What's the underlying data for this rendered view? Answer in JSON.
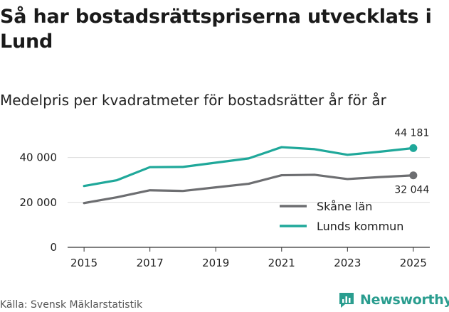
{
  "title": "Så har bostadsrättspriserna utvecklats i Lund",
  "subtitle": "Medelpris per kvadratmeter för bostadsrätter år för år",
  "source": "Källa: Svensk Mäklarstatistik",
  "brand": {
    "name": "Newsworthy",
    "icon": "newsworthy-logo-icon",
    "color": "#2a9d8f"
  },
  "chart_data": {
    "type": "line",
    "x": [
      2015,
      2016,
      2017,
      2018,
      2019,
      2020,
      2021,
      2022,
      2023,
      2024,
      2025
    ],
    "xticks": [
      2015,
      2017,
      2019,
      2021,
      2023,
      2025
    ],
    "ylim": [
      0,
      50000
    ],
    "yticks": [
      0,
      20000,
      40000
    ],
    "ytick_labels": [
      "0",
      "20 000",
      "40 000"
    ],
    "grid": "horizontal",
    "legend_position": "bottom-right",
    "series": [
      {
        "name": "Skåne län",
        "color": "#6d6e71",
        "values": [
          19700,
          22300,
          25400,
          25100,
          26700,
          28300,
          32100,
          32300,
          30400,
          31300,
          32044
        ],
        "end_label": "32 044"
      },
      {
        "name": "Lunds kommun",
        "color": "#1fa89a",
        "values": [
          27300,
          29900,
          35700,
          35800,
          37700,
          39600,
          44600,
          43700,
          41200,
          42600,
          44181
        ],
        "end_label": "44 181"
      }
    ]
  }
}
